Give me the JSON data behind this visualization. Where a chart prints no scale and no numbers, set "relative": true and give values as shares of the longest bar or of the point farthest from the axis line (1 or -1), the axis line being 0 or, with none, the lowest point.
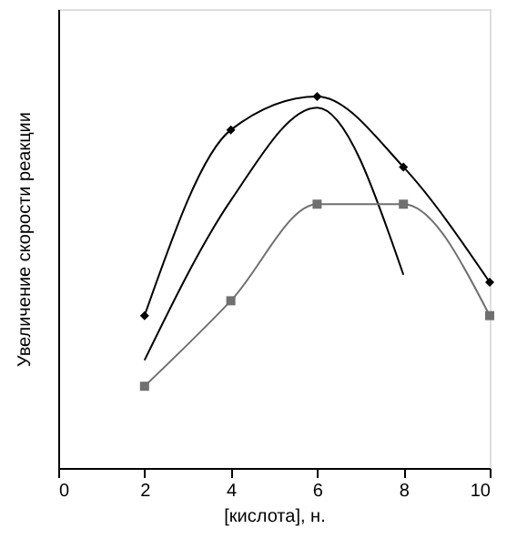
{
  "chart_data": {
    "type": "line",
    "relative": true,
    "xlabel": "[кислота], н.",
    "ylabel": "Увеличение скорости реакции",
    "xlim": [
      0,
      10
    ],
    "xticks": [
      0,
      2,
      4,
      6,
      8,
      10
    ],
    "grid": false,
    "legend": false,
    "line_style": "solid",
    "series": [
      {
        "color": "#000000",
        "marker": "diamond",
        "x": [
          2,
          4,
          6,
          8,
          10
        ],
        "values": [
          0.41,
          0.91,
          1,
          0.81,
          0.5
        ]
      },
      {
        "color": "#000000",
        "marker": "none",
        "x": [
          2,
          4,
          6,
          8
        ],
        "values": [
          0.29,
          0.72,
          0.97,
          0.52
        ]
      },
      {
        "color": "#707070",
        "marker": "square",
        "x": [
          2,
          4,
          6,
          8,
          10
        ],
        "values": [
          0.22,
          0.45,
          0.71,
          0.71,
          0.41
        ]
      }
    ]
  }
}
